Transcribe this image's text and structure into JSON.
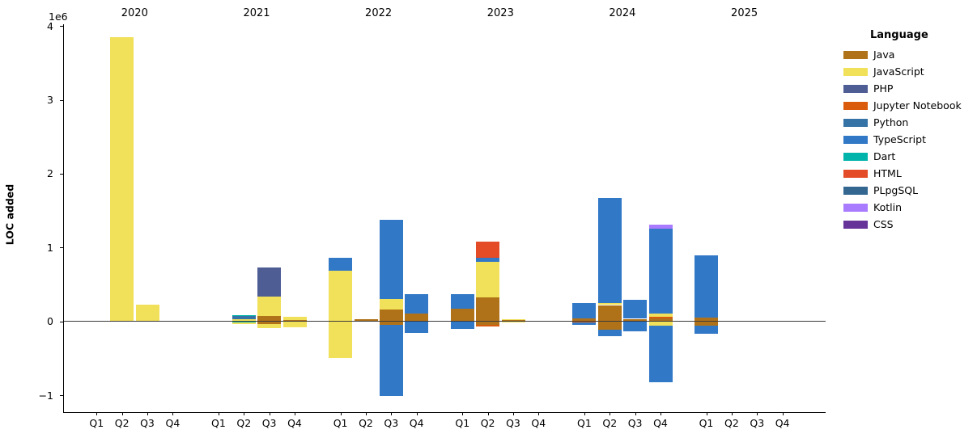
{
  "chart_data": {
    "type": "bar",
    "ylabel": "LOC added",
    "offset_text": "1e6",
    "y_ticks": [
      {
        "label": "4",
        "value": 4
      },
      {
        "label": "3",
        "value": 3
      },
      {
        "label": "2",
        "value": 2
      },
      {
        "label": "1",
        "value": 1
      },
      {
        "label": "0",
        "value": 0
      },
      {
        "label": "−1",
        "value": -1
      }
    ],
    "ylim": [
      -1.23,
      4.0
    ],
    "unit": "1e6 LOC",
    "grid": false,
    "years": [
      "2020",
      "2021",
      "2022",
      "2023",
      "2024",
      "2025"
    ],
    "quarters": [
      "Q1",
      "Q2",
      "Q3",
      "Q4"
    ],
    "legend": {
      "title": "Language",
      "position": "right",
      "items": [
        {
          "label": "Java",
          "color": "#b07219"
        },
        {
          "label": "JavaScript",
          "color": "#f1e05a"
        },
        {
          "label": "PHP",
          "color": "#4f5d95"
        },
        {
          "label": "Jupyter Notebook",
          "color": "#da5b0b"
        },
        {
          "label": "Python",
          "color": "#3572a5"
        },
        {
          "label": "TypeScript",
          "color": "#3178c6"
        },
        {
          "label": "Dart",
          "color": "#00b4ab"
        },
        {
          "label": "HTML",
          "color": "#e34c26"
        },
        {
          "label": "PLpgSQL",
          "color": "#336790"
        },
        {
          "label": "Kotlin",
          "color": "#a97bff"
        },
        {
          "label": "CSS",
          "color": "#663399"
        }
      ]
    },
    "bars": [
      {
        "year": "2020",
        "quarter": "Q2",
        "pos": [
          {
            "lang": "JavaScript",
            "value": 3.85
          }
        ],
        "neg": []
      },
      {
        "year": "2020",
        "quarter": "Q3",
        "pos": [
          {
            "lang": "JavaScript",
            "value": 0.23
          }
        ],
        "neg": []
      },
      {
        "year": "2021",
        "quarter": "Q2",
        "pos": [
          {
            "lang": "JavaScript",
            "value": 0.03
          },
          {
            "lang": "Python",
            "value": 0.04
          },
          {
            "lang": "Dart",
            "value": 0.01
          }
        ],
        "neg": [
          {
            "lang": "Dart",
            "value": 0.015
          },
          {
            "lang": "JavaScript",
            "value": 0.025
          }
        ]
      },
      {
        "year": "2021",
        "quarter": "Q3",
        "pos": [
          {
            "lang": "Java",
            "value": 0.07
          },
          {
            "lang": "JavaScript",
            "value": 0.27
          },
          {
            "lang": "PHP",
            "value": 0.39
          }
        ],
        "neg": [
          {
            "lang": "Java",
            "value": 0.04
          },
          {
            "lang": "JavaScript",
            "value": 0.05
          }
        ]
      },
      {
        "year": "2021",
        "quarter": "Q4",
        "pos": [
          {
            "lang": "Java",
            "value": 0.015
          },
          {
            "lang": "JavaScript",
            "value": 0.045
          }
        ],
        "neg": [
          {
            "lang": "Java",
            "value": 0.007
          },
          {
            "lang": "JavaScript",
            "value": 0.075
          }
        ]
      },
      {
        "year": "2022",
        "quarter": "Q1",
        "pos": [
          {
            "lang": "JavaScript",
            "value": 0.69
          },
          {
            "lang": "TypeScript",
            "value": 0.17
          }
        ],
        "neg": [
          {
            "lang": "JavaScript",
            "value": 0.5
          }
        ]
      },
      {
        "year": "2022",
        "quarter": "Q2",
        "pos": [
          {
            "lang": "Java",
            "value": 0.03
          }
        ],
        "neg": []
      },
      {
        "year": "2022",
        "quarter": "Q3",
        "pos": [
          {
            "lang": "Java",
            "value": 0.16
          },
          {
            "lang": "JavaScript",
            "value": 0.14
          },
          {
            "lang": "TypeScript",
            "value": 1.08
          }
        ],
        "neg": [
          {
            "lang": "Java",
            "value": 0.05
          },
          {
            "lang": "TypeScript",
            "value": 0.96
          }
        ]
      },
      {
        "year": "2022",
        "quarter": "Q4",
        "pos": [
          {
            "lang": "Java",
            "value": 0.11
          },
          {
            "lang": "TypeScript",
            "value": 0.26
          }
        ],
        "neg": [
          {
            "lang": "TypeScript",
            "value": 0.16
          }
        ]
      },
      {
        "year": "2023",
        "quarter": "Q1",
        "pos": [
          {
            "lang": "Java",
            "value": 0.17
          },
          {
            "lang": "TypeScript",
            "value": 0.2
          }
        ],
        "neg": [
          {
            "lang": "TypeScript",
            "value": 0.1
          }
        ]
      },
      {
        "year": "2023",
        "quarter": "Q2",
        "pos": [
          {
            "lang": "Java",
            "value": 0.33
          },
          {
            "lang": "JavaScript",
            "value": 0.48
          },
          {
            "lang": "TypeScript",
            "value": 0.05
          },
          {
            "lang": "HTML",
            "value": 0.22
          }
        ],
        "neg": [
          {
            "lang": "Java",
            "value": 0.05
          },
          {
            "lang": "Jupyter Notebook",
            "value": 0.02
          }
        ]
      },
      {
        "year": "2023",
        "quarter": "Q3",
        "pos": [
          {
            "lang": "Java",
            "value": 0.02
          },
          {
            "lang": "JavaScript",
            "value": 0.015
          }
        ],
        "neg": [
          {
            "lang": "JavaScript",
            "value": 0.01
          }
        ]
      },
      {
        "year": "2024",
        "quarter": "Q1",
        "pos": [
          {
            "lang": "Java",
            "value": 0.045
          },
          {
            "lang": "TypeScript",
            "value": 0.2
          }
        ],
        "neg": [
          {
            "lang": "Jupyter Notebook",
            "value": 0.018
          },
          {
            "lang": "TypeScript",
            "value": 0.035
          }
        ]
      },
      {
        "year": "2024",
        "quarter": "Q2",
        "pos": [
          {
            "lang": "Java",
            "value": 0.22
          },
          {
            "lang": "JavaScript",
            "value": 0.03
          },
          {
            "lang": "TypeScript",
            "value": 1.42
          }
        ],
        "neg": [
          {
            "lang": "Java",
            "value": 0.11
          },
          {
            "lang": "TypeScript",
            "value": 0.09
          }
        ]
      },
      {
        "year": "2024",
        "quarter": "Q3",
        "pos": [
          {
            "lang": "Java",
            "value": 0.035
          },
          {
            "lang": "TypeScript",
            "value": 0.26
          }
        ],
        "neg": [
          {
            "lang": "TypeScript",
            "value": 0.14
          }
        ]
      },
      {
        "year": "2024",
        "quarter": "Q4",
        "pos": [
          {
            "lang": "Java",
            "value": 0.04
          },
          {
            "lang": "Jupyter Notebook",
            "value": 0.02
          },
          {
            "lang": "JavaScript",
            "value": 0.045
          },
          {
            "lang": "TypeScript",
            "value": 1.155
          },
          {
            "lang": "Kotlin",
            "value": 0.05
          }
        ],
        "neg": [
          {
            "lang": "JavaScript",
            "value": 0.055
          },
          {
            "lang": "TypeScript",
            "value": 0.775
          }
        ]
      },
      {
        "year": "2025",
        "quarter": "Q1",
        "pos": [
          {
            "lang": "Java",
            "value": 0.055
          },
          {
            "lang": "TypeScript",
            "value": 0.835
          }
        ],
        "neg": [
          {
            "lang": "Java",
            "value": 0.06
          },
          {
            "lang": "TypeScript",
            "value": 0.11
          }
        ]
      }
    ]
  }
}
